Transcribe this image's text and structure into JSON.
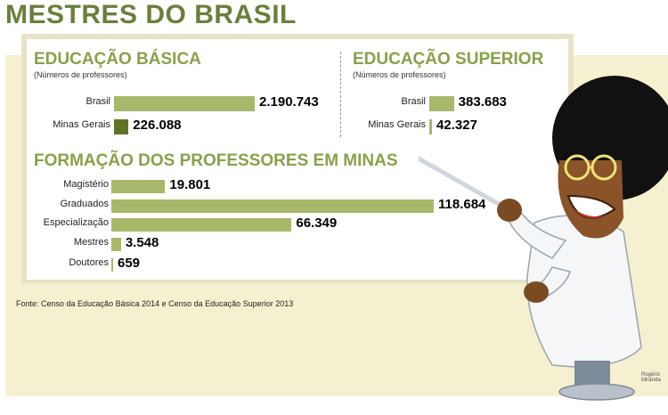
{
  "title": "MESTRES DO BRASIL",
  "colors": {
    "bar": "#a8b86a",
    "bar_highlight": "#5f7424",
    "title": "#6b7f3c",
    "section_title": "#8aa04a"
  },
  "source": "Fonte: Censo da Educação Básica 2014 e Censo da Educação Superior 2013",
  "credit": [
    "Rogério",
    "Miranda"
  ],
  "chart_data": [
    {
      "type": "bar",
      "orientation": "horizontal",
      "title": "EDUCAÇÃO BÁSICA",
      "subtitle": "(Números de professores)",
      "categories": [
        "Brasil",
        "Minas Gerais"
      ],
      "values": [
        2190743,
        226088
      ],
      "value_labels": [
        "2.190.743",
        "226.088"
      ]
    },
    {
      "type": "bar",
      "orientation": "horizontal",
      "title": "EDUCAÇÃO SUPERIOR",
      "subtitle": "(Números de professores)",
      "categories": [
        "Brasil",
        "Minas Gerais"
      ],
      "values": [
        383683,
        42327
      ],
      "value_labels": [
        "383.683",
        "42.327"
      ]
    },
    {
      "type": "bar",
      "orientation": "horizontal",
      "title": "FORMAÇÃO DOS PROFESSORES EM MINAS",
      "categories": [
        "Magistério",
        "Graduados",
        "Especialização",
        "Mestres",
        "Doutores"
      ],
      "values": [
        19801,
        118684,
        66349,
        3548,
        659
      ],
      "value_labels": [
        "19.801",
        "118.684",
        "66.349",
        "3.548",
        "659"
      ]
    }
  ]
}
